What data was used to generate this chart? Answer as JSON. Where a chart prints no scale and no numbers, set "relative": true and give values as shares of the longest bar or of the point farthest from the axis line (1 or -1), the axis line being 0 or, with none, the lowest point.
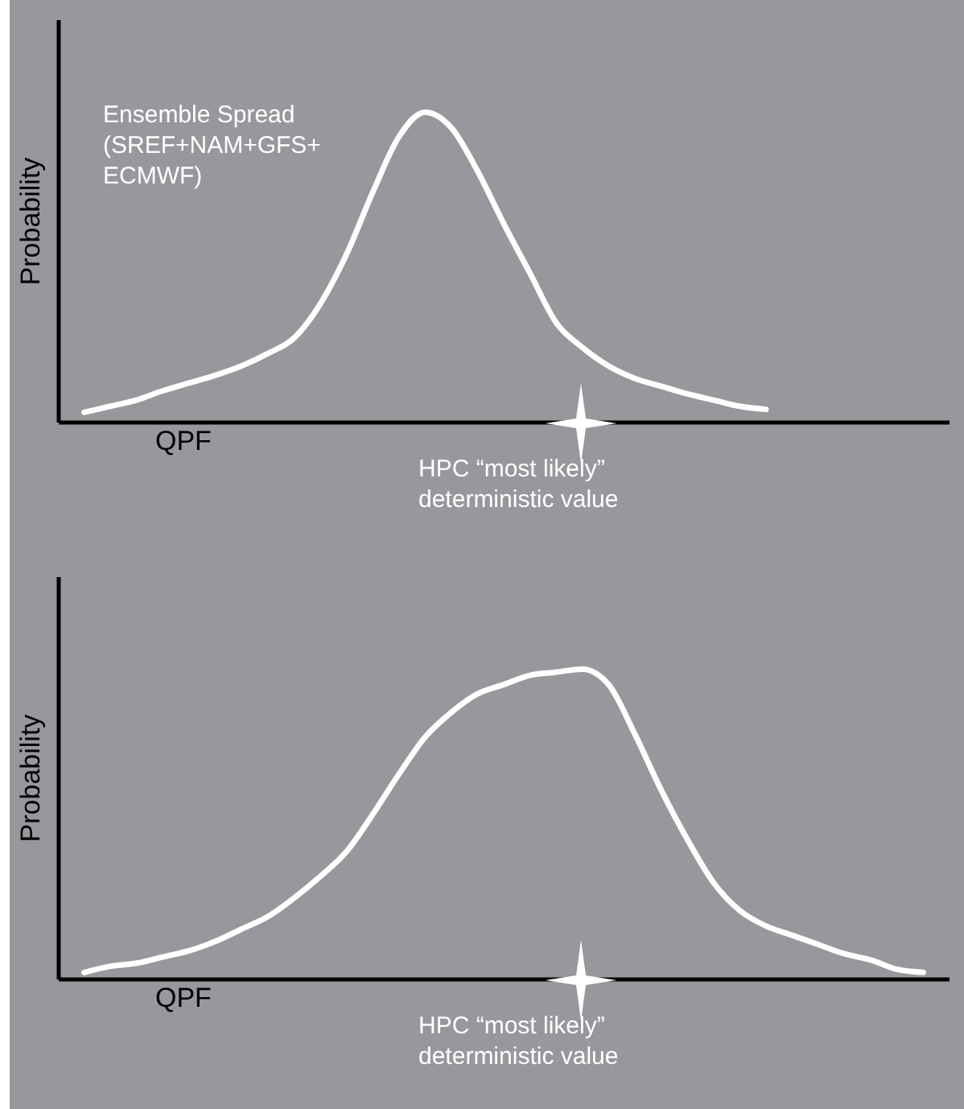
{
  "chart_data": [
    {
      "type": "line",
      "relative": true,
      "xlabel": "QPF",
      "ylabel": "Probability",
      "tick_labels": false,
      "color": "#ffffff",
      "categories": [
        null,
        null,
        null,
        null,
        null,
        null,
        null,
        null,
        null,
        null,
        null,
        null,
        null,
        null,
        null,
        null,
        null,
        null,
        null,
        null,
        null,
        null,
        null,
        null,
        null,
        null,
        null,
        null,
        null,
        null,
        null,
        null,
        null,
        null,
        null
      ],
      "values": [
        null,
        0.03,
        0.05,
        0.07,
        0.1,
        0.125,
        0.15,
        0.18,
        0.22,
        0.27,
        0.38,
        0.54,
        0.74,
        0.92,
        1,
        0.95,
        0.81,
        0.64,
        0.48,
        0.32,
        0.24,
        0.18,
        0.14,
        0.115,
        0.09,
        0.07,
        0.05,
        0.04,
        null,
        null,
        null,
        null,
        null,
        null,
        null
      ],
      "annotations": [
        "Ensemble Spread\n(SREF+NAM+GFS+\nECMWF)",
        "HPC “most likely”\ndeterministic value"
      ]
    },
    {
      "type": "line",
      "relative": true,
      "xlabel": "QPF",
      "ylabel": "Probability",
      "tick_labels": false,
      "color": "#ffffff",
      "categories": [
        null,
        null,
        null,
        null,
        null,
        null,
        null,
        null,
        null,
        null,
        null,
        null,
        null,
        null,
        null,
        null,
        null,
        null,
        null,
        null,
        null,
        null,
        null,
        null,
        null,
        null,
        null,
        null,
        null,
        null,
        null,
        null,
        null,
        null,
        null
      ],
      "values": [
        null,
        0.02,
        0.04,
        0.05,
        0.07,
        0.09,
        0.12,
        0.16,
        0.2,
        0.26,
        0.33,
        0.41,
        0.53,
        0.66,
        0.78,
        0.86,
        0.92,
        0.95,
        0.98,
        0.99,
        1,
        0.95,
        0.79,
        0.61,
        0.45,
        0.31,
        0.22,
        0.17,
        0.14,
        0.11,
        0.08,
        0.06,
        0.03,
        0.02,
        null
      ],
      "annotations": [
        "HPC “most likely”\ndeterministic value"
      ]
    }
  ]
}
